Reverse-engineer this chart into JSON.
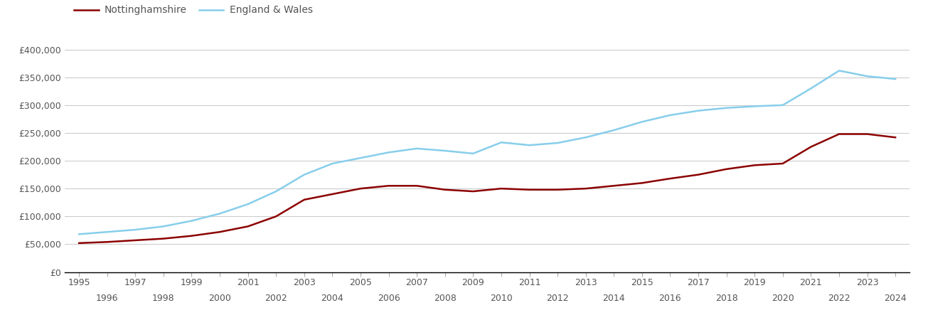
{
  "nottinghamshire_label": "Nottinghamshire",
  "england_wales_label": "England & Wales",
  "nottinghamshire_color": "#8B0000",
  "england_wales_color": "#87CEEB",
  "line_width": 1.8,
  "background_color": "#ffffff",
  "grid_color": "#cccccc",
  "years": [
    1995,
    1996,
    1997,
    1998,
    1999,
    2000,
    2001,
    2002,
    2003,
    2004,
    2005,
    2006,
    2007,
    2008,
    2009,
    2010,
    2011,
    2012,
    2013,
    2014,
    2015,
    2016,
    2017,
    2018,
    2019,
    2020,
    2021,
    2022,
    2023,
    2024
  ],
  "nottinghamshire_values": [
    52000,
    54000,
    57000,
    60000,
    65000,
    72000,
    82000,
    100000,
    130000,
    140000,
    150000,
    155000,
    155000,
    148000,
    145000,
    150000,
    148000,
    148000,
    150000,
    155000,
    160000,
    168000,
    175000,
    185000,
    192000,
    195000,
    225000,
    248000,
    248000,
    242000
  ],
  "england_wales_values": [
    68000,
    72000,
    76000,
    82000,
    92000,
    105000,
    122000,
    145000,
    175000,
    195000,
    205000,
    215000,
    222000,
    218000,
    213000,
    233000,
    228000,
    232000,
    242000,
    255000,
    270000,
    282000,
    290000,
    295000,
    298000,
    300000,
    330000,
    362000,
    352000,
    347000
  ],
  "ylim": [
    0,
    420000
  ],
  "yticks": [
    0,
    50000,
    100000,
    150000,
    200000,
    250000,
    300000,
    350000,
    400000
  ],
  "ytick_labels": [
    "£0",
    "£50,000",
    "£100,000",
    "£150,000",
    "£200,000",
    "£250,000",
    "£300,000",
    "£350,000",
    "£400,000"
  ],
  "xticks_odd": [
    1995,
    1997,
    1999,
    2001,
    2003,
    2005,
    2007,
    2009,
    2011,
    2013,
    2015,
    2017,
    2019,
    2021,
    2023
  ],
  "xticks_even": [
    1996,
    1998,
    2000,
    2002,
    2004,
    2006,
    2008,
    2010,
    2012,
    2014,
    2016,
    2018,
    2020,
    2022,
    2024
  ],
  "tick_fontsize": 9,
  "legend_fontsize": 10,
  "text_color": "#555555"
}
